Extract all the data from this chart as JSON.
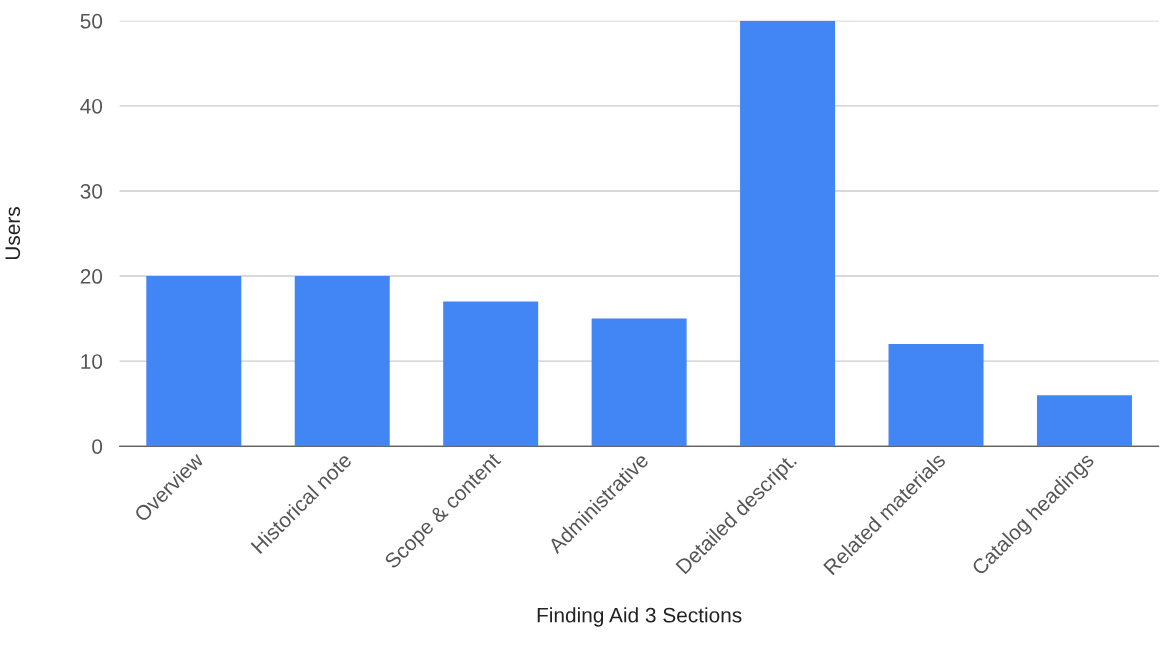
{
  "chart_data": {
    "type": "bar",
    "xlabel": "Finding Aid 3 Sections",
    "ylabel": "Users",
    "categories": [
      "Overview",
      "Historical note",
      "Scope & content",
      "Administrative",
      "Detailed descript.",
      "Related materials",
      "Catalog headings"
    ],
    "values": [
      20,
      20,
      17,
      15,
      50,
      12,
      6
    ],
    "color": "#4285f4",
    "ylim": [
      0,
      50
    ],
    "yticks": [
      0,
      10,
      20,
      30,
      40,
      50
    ],
    "grid": "y",
    "legend": false
  }
}
